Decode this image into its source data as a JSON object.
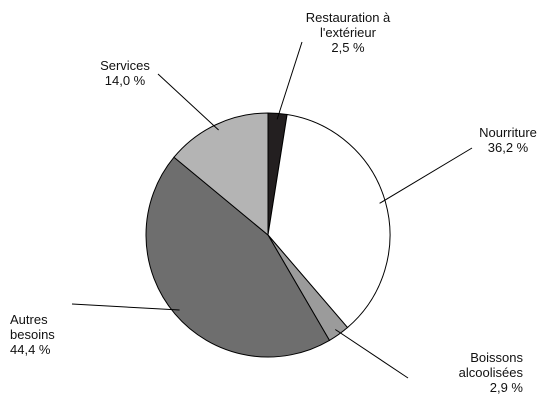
{
  "chart_data": {
    "type": "pie",
    "categories": [
      "Restauration à l'extérieur",
      "Nourriture",
      "Boissons alcoolisées",
      "Autres besoins",
      "Services"
    ],
    "values": [
      2.5,
      36.2,
      2.9,
      44.4,
      14.0
    ],
    "value_labels": [
      "2,5 %",
      "36,2 %",
      "2,9 %",
      "44,4 %",
      "14,0 %"
    ],
    "colors": [
      "#231f20",
      "#ffffff",
      "#9b9b9b",
      "#6e6e6e",
      "#b4b4b4"
    ]
  }
}
